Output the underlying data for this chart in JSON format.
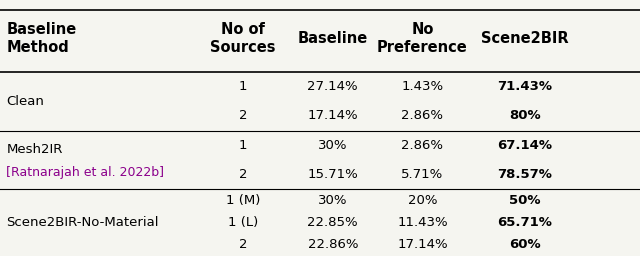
{
  "col_headers": [
    [
      "Baseline\nMethod",
      "No of\nSources",
      "Baseline",
      "No\nPreference",
      "Scene2BIR"
    ]
  ],
  "rows": [
    {
      "method": "Clean",
      "method2": "",
      "method_color": "black",
      "method2_color": "black",
      "sub_rows": [
        [
          "1",
          "27.14%",
          "1.43%",
          "71.43%"
        ],
        [
          "2",
          "17.14%",
          "2.86%",
          "80%"
        ]
      ],
      "bold_last": [
        true,
        true
      ]
    },
    {
      "method": "Mesh2IR",
      "method2": "[Ratnarajah et al. 2022b]",
      "method_color": "black",
      "method2_color": "#8B008B",
      "sub_rows": [
        [
          "1",
          "30%",
          "2.86%",
          "67.14%"
        ],
        [
          "2",
          "15.71%",
          "5.71%",
          "78.57%"
        ]
      ],
      "bold_last": [
        true,
        true
      ]
    },
    {
      "method": "Scene2BIR-No-Material",
      "method2": "",
      "method_color": "black",
      "method2_color": "black",
      "sub_rows": [
        [
          "1 (M)",
          "30%",
          "20%",
          "50%"
        ],
        [
          "1 (L)",
          "22.85%",
          "11.43%",
          "65.71%"
        ],
        [
          "2",
          "22.86%",
          "17.14%",
          "60%"
        ]
      ],
      "bold_last": [
        true,
        true,
        true
      ]
    }
  ],
  "bg_color": "#f5f5f0",
  "font_size": 9.5,
  "header_font_size": 10.5
}
